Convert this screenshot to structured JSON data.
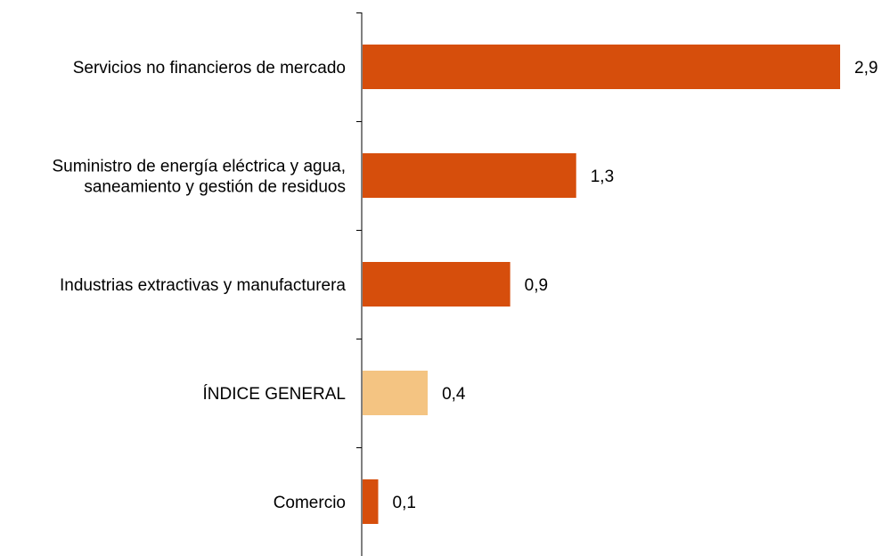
{
  "chart_data": {
    "type": "bar",
    "orientation": "horizontal",
    "categories": [
      [
        "Servicios no financieros de mercado"
      ],
      [
        "Suministro de energía eléctrica y agua,",
        "saneamiento y gestión de residuos"
      ],
      [
        "Industrias extractivas y manufacturera"
      ],
      [
        "ÍNDICE GENERAL"
      ],
      [
        "Comercio"
      ]
    ],
    "values": [
      2.9,
      1.3,
      0.9,
      0.4,
      0.1
    ],
    "value_labels": [
      "2,9",
      "1,3",
      "0,9",
      "0,4",
      "0,1"
    ],
    "bar_colors": [
      "#d64e0c",
      "#d64e0c",
      "#d64e0c",
      "#f4c482",
      "#d64e0c"
    ],
    "xlim": [
      0,
      2.9
    ],
    "axis_color": "#000000",
    "grid": false,
    "legend": "none"
  }
}
